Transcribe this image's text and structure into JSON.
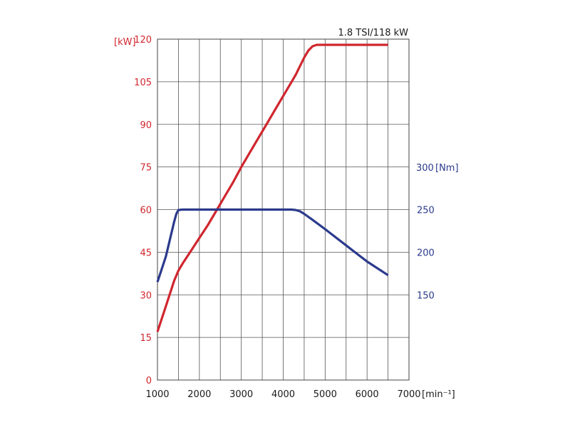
{
  "chart_data": {
    "type": "line",
    "title": "1.8 TSI/118 kW",
    "xlabel": "[min⁻¹]",
    "x_tick_values": [
      1000,
      2000,
      3000,
      4000,
      5000,
      6000,
      7000
    ],
    "x_tick_labels": [
      "1000",
      "2000",
      "3000",
      "4000",
      "5000",
      "6000",
      "7000"
    ],
    "xlim": [
      1000,
      7000
    ],
    "grid": true,
    "axes": {
      "left": {
        "unit_label": "[kW]",
        "ylim": [
          0,
          120
        ],
        "ticks": [
          0,
          15,
          30,
          45,
          60,
          75,
          90,
          105,
          120
        ],
        "color": "#d0262e"
      },
      "right": {
        "unit_label": "[Nm]",
        "ticks": [
          150,
          200,
          250,
          300
        ],
        "color": "#2b3a8c"
      }
    },
    "series": [
      {
        "key": "power",
        "axis": "left",
        "color": "#d0262e",
        "x": [
          1000,
          1200,
          1400,
          1500,
          1600,
          1800,
          2000,
          2200,
          2400,
          2600,
          2800,
          3000,
          3200,
          3400,
          3600,
          3800,
          4000,
          4200,
          4300,
          4400,
          4500,
          4600,
          4700,
          4800,
          5000,
          5500,
          6000,
          6500
        ],
        "values": [
          17,
          26,
          35,
          38.5,
          41,
          45.5,
          50,
          54.5,
          59.5,
          64.5,
          69.5,
          75,
          80,
          85,
          90,
          95,
          100,
          105,
          107.5,
          110.5,
          113.5,
          116,
          117.5,
          118,
          118,
          118,
          118,
          118
        ]
      },
      {
        "key": "torque",
        "axis": "right",
        "color": "#2b3a8c",
        "x": [
          1000,
          1200,
          1400,
          1450,
          1500,
          1600,
          2000,
          2500,
          3000,
          3500,
          4000,
          4200,
          4300,
          4400,
          4500,
          4700,
          5000,
          5500,
          6000,
          6500
        ],
        "values": [
          165,
          195,
          236,
          245,
          249.5,
          250,
          250,
          250,
          250,
          250,
          250,
          250,
          249.5,
          248,
          245,
          238,
          227,
          208,
          189,
          173
        ]
      }
    ]
  }
}
